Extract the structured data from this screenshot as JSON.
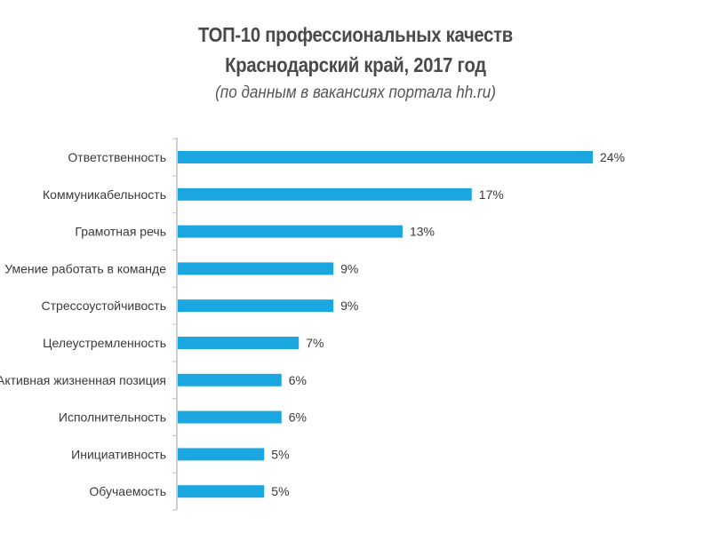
{
  "chart_data": {
    "type": "bar",
    "orientation": "horizontal",
    "title": "ТОП-10 профессиональных качеств",
    "subtitle": "Краснодарский край, 2017 год",
    "note": "(по данным в вакансиях портала hh.ru)",
    "xlabel": "",
    "ylabel": "",
    "xlim": [
      0,
      24
    ],
    "grid": false,
    "legend": "none",
    "categories": [
      "Ответственность",
      "Коммуникабельность",
      "Грамотная речь",
      "Умение работать в команде",
      "Стрессоустойчивость",
      "Целеустремленность",
      "Активная жизненная позиция",
      "Исполнительность",
      "Инициативность",
      "Обучаемость"
    ],
    "values": [
      24,
      17,
      13,
      9,
      9,
      7,
      6,
      6,
      5,
      5
    ],
    "value_labels": [
      "24%",
      "17%",
      "13%",
      "9%",
      "9%",
      "7%",
      "6%",
      "6%",
      "5%",
      "5%"
    ],
    "colors": {
      "bar": "#1aa7e0",
      "axis": "#bfbfbf",
      "text": "#3a3a3a"
    }
  }
}
